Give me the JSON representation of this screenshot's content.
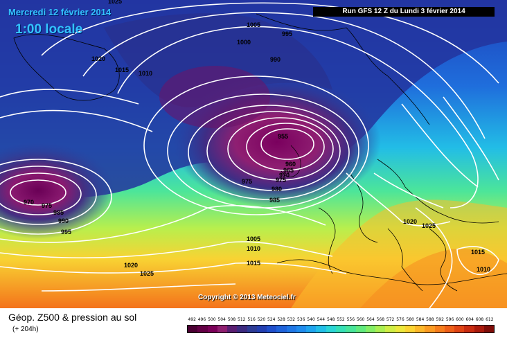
{
  "header": {
    "date": "Mercredi 12 février 2014",
    "time": "1:00 locale",
    "run": "Run GFS 12 Z du Lundi 3 février 2014"
  },
  "copyright": "Copyright © 2013 Meteociel.fr",
  "legend": {
    "title": "Géop. Z500 & pression au sol",
    "subtitle": "(+ 204h)",
    "scale_values": [
      "492",
      "496",
      "500",
      "504",
      "508",
      "512",
      "516",
      "520",
      "524",
      "528",
      "532",
      "536",
      "540",
      "544",
      "548",
      "552",
      "556",
      "560",
      "564",
      "568",
      "572",
      "576",
      "580",
      "584",
      "588",
      "592",
      "596",
      "600",
      "604",
      "608",
      "612"
    ],
    "scale_colors": [
      "#4b0033",
      "#640046",
      "#7b0059",
      "#8f1f70",
      "#5a1e72",
      "#3d2b80",
      "#2d3c96",
      "#233fb1",
      "#1f4fcc",
      "#1f63db",
      "#1f77e6",
      "#1f8cee",
      "#1fa5ef",
      "#22bfe8",
      "#2bd6d6",
      "#36e0b6",
      "#48e59a",
      "#61ea7e",
      "#84ee66",
      "#abef52",
      "#d0ee45",
      "#ede83c",
      "#fbd432",
      "#fcb82a",
      "#fb9b22",
      "#f67d1c",
      "#ee5f18",
      "#e04414",
      "#c92c10",
      "#aa1a0c",
      "#7f0d08"
    ]
  },
  "isobars": [
    {
      "id": "l1025a",
      "value": "1025"
    },
    {
      "id": "l1005a",
      "value": "1005"
    },
    {
      "id": "l995a",
      "value": "995"
    },
    {
      "id": "l1000a",
      "value": "1000"
    },
    {
      "id": "l990a",
      "value": "990"
    },
    {
      "id": "l1020a",
      "value": "1020"
    },
    {
      "id": "l1015a",
      "value": "1015"
    },
    {
      "id": "l1010a",
      "value": "1010"
    },
    {
      "id": "l955",
      "value": "955"
    },
    {
      "id": "l960",
      "value": "960"
    },
    {
      "id": "l965",
      "value": "965"
    },
    {
      "id": "l970a",
      "value": "970"
    },
    {
      "id": "l975a",
      "value": "975"
    },
    {
      "id": "l975b",
      "value": "975"
    },
    {
      "id": "l980",
      "value": "980"
    },
    {
      "id": "l985a",
      "value": "985"
    },
    {
      "id": "l970b",
      "value": "970"
    },
    {
      "id": "l975c",
      "value": "975"
    },
    {
      "id": "l985b",
      "value": "985"
    },
    {
      "id": "l990b",
      "value": "990"
    },
    {
      "id": "l995b",
      "value": "995"
    },
    {
      "id": "l1005b",
      "value": "1005"
    },
    {
      "id": "l1010b",
      "value": "1010"
    },
    {
      "id": "l1015b",
      "value": "1015"
    },
    {
      "id": "l1020b",
      "value": "1020"
    },
    {
      "id": "l1025b",
      "value": "1025"
    },
    {
      "id": "l1020c",
      "value": "1020"
    },
    {
      "id": "l1025c",
      "value": "1025"
    },
    {
      "id": "l1015c",
      "value": "1015"
    },
    {
      "id": "l1010c",
      "value": "1010"
    }
  ]
}
